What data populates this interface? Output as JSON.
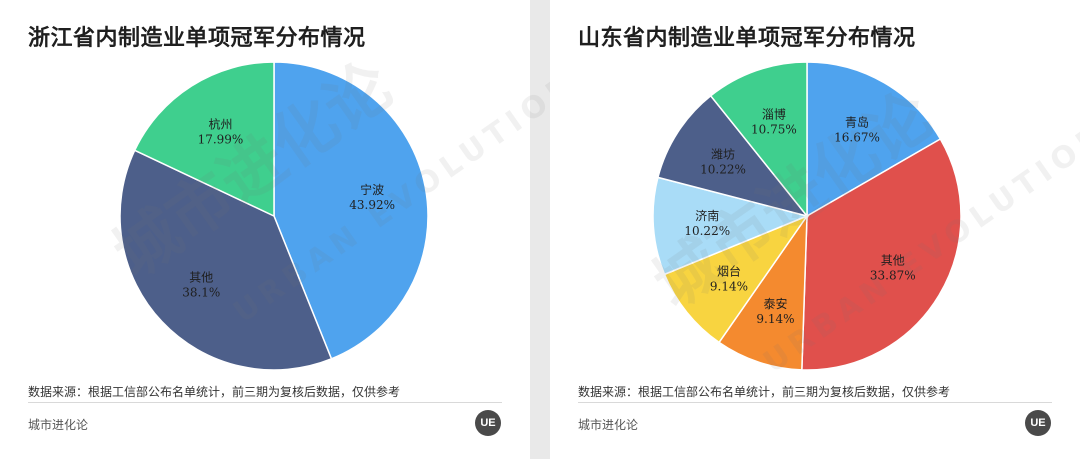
{
  "chart_data": [
    {
      "type": "pie",
      "title": "浙江省内制造业单项冠军分布情况",
      "slices": [
        {
          "label": "宁波",
          "value": 43.92,
          "display": "43.92%",
          "color": "#4fa3ee"
        },
        {
          "label": "其他",
          "value": 38.1,
          "display": "38.1%",
          "color": "#4d5f8a"
        },
        {
          "label": "杭州",
          "value": 17.99,
          "display": "17.99%",
          "color": "#3fcf8e"
        }
      ],
      "source": "数据来源：根据工信部公布名单统计，前三期为复核后数据，仅供参考",
      "brand": "城市进化论",
      "logo": "UE"
    },
    {
      "type": "pie",
      "title": "山东省内制造业单项冠军分布情况",
      "slices": [
        {
          "label": "青岛",
          "value": 16.67,
          "display": "16.67%",
          "color": "#4fa3ee"
        },
        {
          "label": "其他",
          "value": 33.87,
          "display": "33.87%",
          "color": "#e0504c"
        },
        {
          "label": "泰安",
          "value": 9.14,
          "display": "9.14%",
          "color": "#f48a2f"
        },
        {
          "label": "烟台",
          "value": 9.14,
          "display": "9.14%",
          "color": "#f8d440"
        },
        {
          "label": "济南",
          "value": 10.22,
          "display": "10.22%",
          "color": "#a9dcf7"
        },
        {
          "label": "潍坊",
          "value": 10.22,
          "display": "10.22%",
          "color": "#4d5f8a"
        },
        {
          "label": "淄博",
          "value": 10.75,
          "display": "10.75%",
          "color": "#3fcf8e"
        }
      ],
      "source": "数据来源：根据工信部公布名单统计，前三期为复核后数据，仅供参考",
      "brand": "城市进化论",
      "logo": "UE"
    }
  ],
  "watermark": {
    "cn": "城市进化论",
    "en": "URBAN EVOLUTION"
  }
}
